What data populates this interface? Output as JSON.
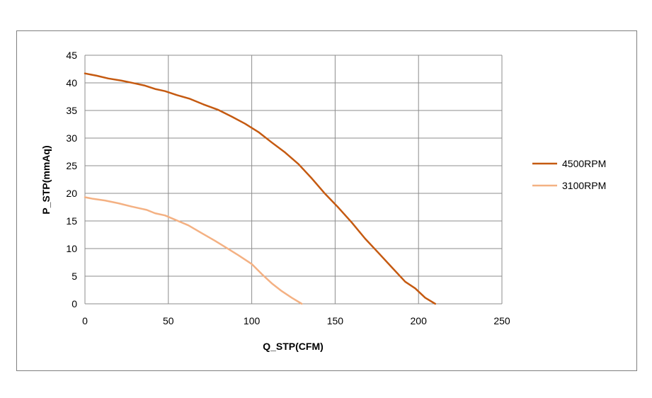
{
  "chart_data": {
    "type": "line",
    "title": "",
    "xlabel": "Q_STP(CFM)",
    "ylabel": "P_STP(mmAq)",
    "xlim": [
      0,
      250
    ],
    "ylim": [
      0,
      45
    ],
    "xticks": [
      0,
      50,
      100,
      150,
      200,
      250
    ],
    "yticks": [
      0,
      5,
      10,
      15,
      20,
      25,
      30,
      35,
      40,
      45
    ],
    "grid": true,
    "legend_position": "right",
    "series": [
      {
        "name": "4500RPM",
        "color": "#c55a11",
        "x": [
          0,
          7,
          14,
          22,
          30,
          36,
          42,
          48,
          55,
          63,
          71,
          80,
          88,
          96,
          104,
          112,
          120,
          128,
          136,
          144,
          152,
          160,
          168,
          176,
          184,
          192,
          198,
          204,
          210
        ],
        "y": [
          41.7,
          41.3,
          40.8,
          40.4,
          39.9,
          39.5,
          38.9,
          38.5,
          37.8,
          37.1,
          36.1,
          35.1,
          33.9,
          32.6,
          31.1,
          29.2,
          27.4,
          25.3,
          22.7,
          19.9,
          17.4,
          14.7,
          11.8,
          9.2,
          6.6,
          4.0,
          2.8,
          1.1,
          0
        ]
      },
      {
        "name": "3100RPM",
        "color": "#f4b183",
        "x": [
          0,
          5,
          12,
          20,
          28,
          34,
          37,
          42,
          48,
          55,
          62,
          70,
          78,
          85,
          92,
          100,
          106,
          112,
          118,
          124,
          130
        ],
        "y": [
          19.3,
          19.0,
          18.7,
          18.2,
          17.6,
          17.2,
          17.0,
          16.4,
          16.0,
          15.1,
          14.2,
          12.8,
          11.4,
          10.1,
          8.8,
          7.2,
          5.4,
          3.7,
          2.3,
          1.1,
          0
        ]
      }
    ]
  }
}
